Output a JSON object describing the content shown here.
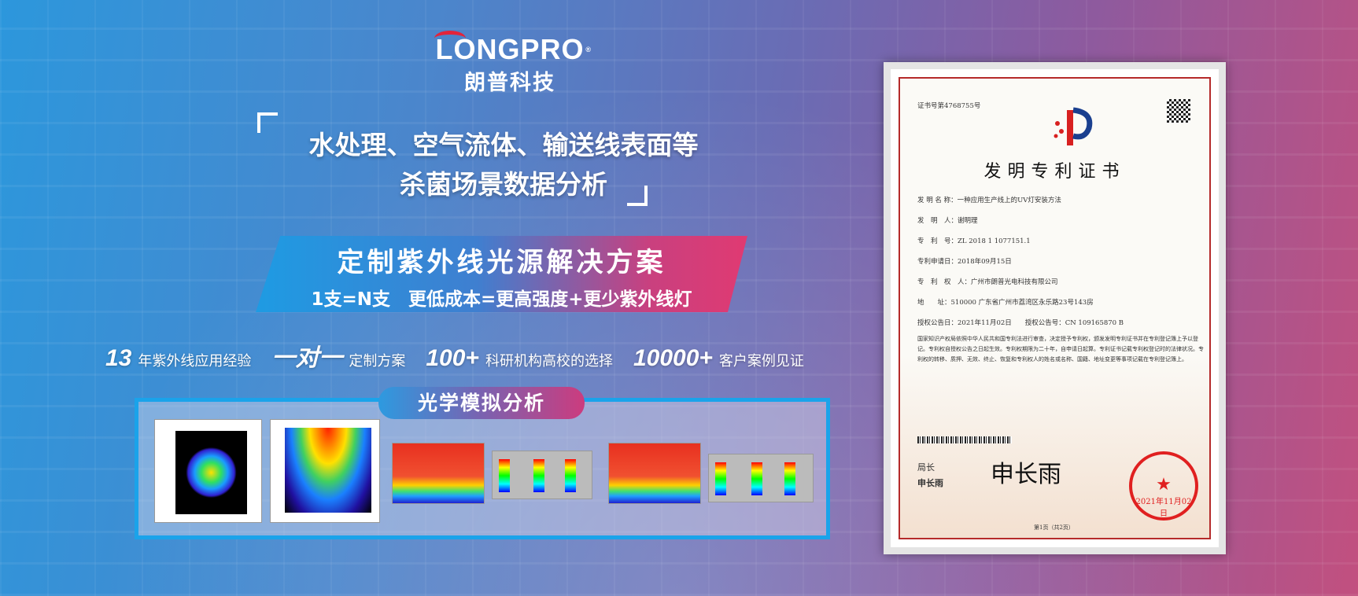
{
  "logo": {
    "en": "LONGPRO",
    "reg": "®",
    "cn": "朗普科技"
  },
  "headline": {
    "line1": "水处理、空气流体、输送线表面等",
    "line2": "杀菌场景数据分析"
  },
  "banner": {
    "title": "定制紫外线光源解决方案",
    "subtitle": "1支=N支　更低成本=更高强度+更少紫外线灯"
  },
  "stats": [
    {
      "num": "13",
      "label": "年紫外线应用经验"
    },
    {
      "num": "一对一",
      "label": "定制方案"
    },
    {
      "num": "100+",
      "label": "科研机构高校的选择"
    },
    {
      "num": "10000+",
      "label": "客户案例见证"
    }
  ],
  "panel": {
    "title": "光学模拟分析"
  },
  "certificate": {
    "cert_no": "证书号第4768755号",
    "title": "发明专利证书",
    "fields": [
      "发 明 名 称：一种应用生产线上的UV灯安装方法",
      "发　明　人：谢明理",
      "专　利　号：ZL 2018 1 1077151.1",
      "专利申请日：2018年09月15日",
      "专　利　权　人：广州市朗普光电科技有限公司",
      "地　　址：510000 广东省广州市荔湾区永乐路23号143房",
      "授权公告日：2021年11月02日　　授权公告号：CN 109165870 B"
    ],
    "body": "国家知识产权局依照中华人民共和国专利法进行审查，决定授予专利权，颁发发明专利证书并在专利登记簿上予以登记。专利权自授权公告之日起生效。专利权期限为二十年，自申请日起算。专利证书记载专利权登记时的法律状况。专利权的转移、质押、无效、终止、恢复和专利权人的姓名或名称、国籍、地址变更等事项记载在专利登记簿上。",
    "director_title": "局长",
    "director_name": "申长雨",
    "signature": "申长雨",
    "seal_date": "2021年11月02日",
    "page": "第1页（共2页）"
  }
}
